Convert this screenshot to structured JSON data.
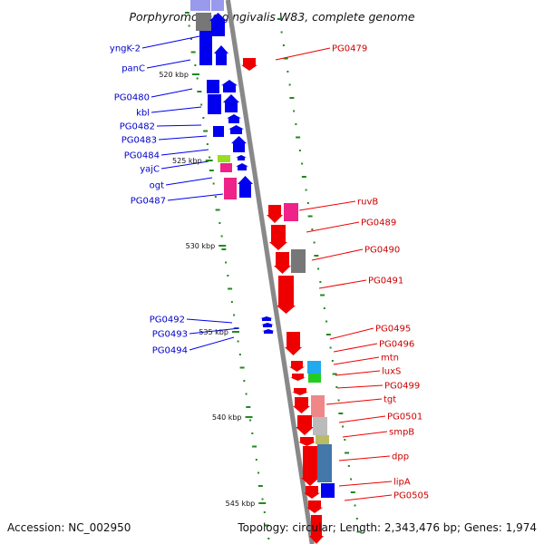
{
  "title": "Porphyromonas gingivalis W83, complete genome",
  "accession": "Accession: NC_002950",
  "summary": "Topology: circular; Length: 2,343,476 bp; Genes: 1,974",
  "colors": {
    "forward_gene": "#0000ee",
    "reverse_gene": "#ee0000",
    "magenta_gene": "#ee2288",
    "grey_gene": "#777777",
    "light_grey_gene": "#bbbbbb",
    "light_blue_gene": "#9999ee",
    "cyan_gene": "#22aaee",
    "green_gene": "#22cc22",
    "yellowgreen_gene": "#99dd22",
    "olive_gene": "#bbbb66",
    "steelblue_gene": "#4477aa",
    "pink_gene": "#ee8888",
    "backbone": "#888888",
    "ticks": "#228822"
  },
  "kbp_labels": [
    "520 kbp",
    "525 kbp",
    "530 kbp",
    "535 kbp",
    "540 kbp",
    "545 kbp"
  ],
  "left_labels": [
    "yngK-2",
    "panC",
    "PG0480",
    "kbl",
    "PG0482",
    "PG0483",
    "PG0484",
    "yajC",
    "ogt",
    "PG0487",
    "PG0492",
    "PG0493",
    "PG0494"
  ],
  "right_labels": [
    "PG0479",
    "ruvB",
    "PG0489",
    "PG0490",
    "PG0491",
    "PG0495",
    "PG0496",
    "mtn",
    "luxS",
    "PG0499",
    "tgt",
    "PG0501",
    "smpB",
    "dpp",
    "lipA",
    "PG0505"
  ]
}
